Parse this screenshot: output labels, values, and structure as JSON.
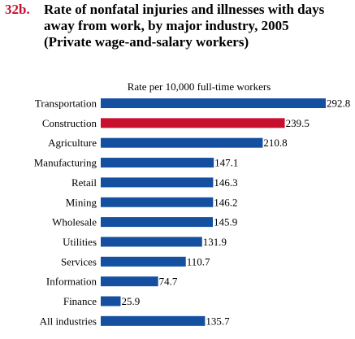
{
  "figure_label": "32b.",
  "title_lines": [
    "Rate of nonfatal injuries and illnesses with days",
    "away from work, by major industry, 2005",
    "(Private wage-and-salary workers)"
  ],
  "chart_data": {
    "type": "bar",
    "orientation": "horizontal",
    "title": "Rate of nonfatal injuries and illnesses with days away from work, by major industry, 2005 (Private wage-and-salary workers)",
    "subtitle": "Rate per 10,000 full-time workers",
    "categories": [
      "Transportation",
      "Construction",
      "Agriculture",
      "Manufacturing",
      "Retail",
      "Mining",
      "Wholesale",
      "Utilities",
      "Services",
      "Information",
      "Finance",
      "All industries"
    ],
    "values": [
      292.8,
      239.5,
      210.8,
      147.1,
      146.3,
      146.2,
      145.9,
      131.9,
      110.7,
      74.7,
      25.9,
      135.7
    ],
    "value_labels": [
      "292.8",
      "239.5",
      "210.8",
      "147.1",
      "146.3",
      "146.2",
      "145.9",
      "131.9",
      "110.7",
      "74.7",
      "25.9",
      "135.7"
    ],
    "highlight_index": 1,
    "colors": {
      "default": "#1550a0",
      "highlight": "#c8102e"
    },
    "xlim": [
      0,
      292.8
    ],
    "grid": false,
    "legend": "none"
  }
}
